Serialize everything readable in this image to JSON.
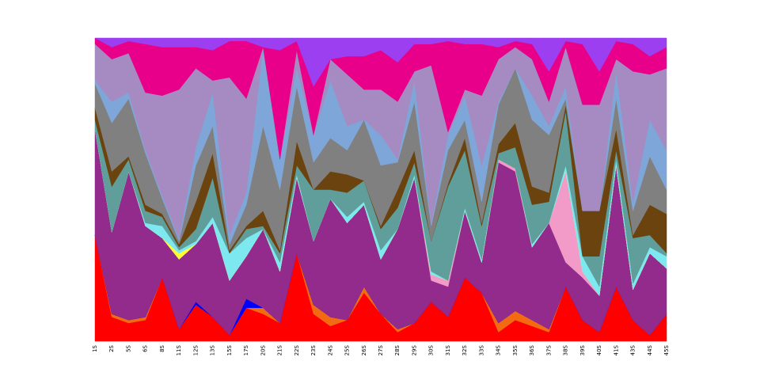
{
  "chart_data": {
    "type": "stackedarea",
    "categories": [
      "1S",
      "2S",
      "5S",
      "6S",
      "8S",
      "11S",
      "12S",
      "13S",
      "15S",
      "17S",
      "20S",
      "21S",
      "22S",
      "23S",
      "24S",
      "25S",
      "26S",
      "27S",
      "28S",
      "29S",
      "30S",
      "31S",
      "32S",
      "33S",
      "34S",
      "35S",
      "36S",
      "37S",
      "38S",
      "39S",
      "40S",
      "41S",
      "43S",
      "44S",
      "45S"
    ],
    "ylim": [
      0,
      100
    ],
    "series": [
      {
        "color": "#ff0000",
        "values": [
          35,
          8,
          6,
          7,
          21,
          4,
          12,
          8,
          2,
          11,
          9,
          6,
          29,
          9,
          5,
          7,
          16,
          9,
          3,
          6,
          13,
          8,
          21,
          16,
          3,
          7,
          5,
          3,
          18,
          7,
          3,
          18,
          7,
          2,
          9
        ]
      },
      {
        "color": "#f26b12",
        "values": [
          0,
          1,
          1,
          1,
          0,
          0,
          0,
          0,
          0,
          0,
          2,
          0,
          0,
          3,
          3,
          0,
          2,
          0,
          1,
          0,
          0,
          0,
          0,
          0,
          3,
          3,
          2,
          1,
          0,
          0,
          0,
          0,
          0,
          0,
          0
        ]
      },
      {
        "color": "#0000ff",
        "values": [
          0,
          0,
          0,
          0,
          0,
          0,
          1,
          0,
          0,
          3,
          0,
          0,
          0,
          0,
          0,
          0,
          0,
          0,
          0,
          0,
          0,
          0,
          0,
          0,
          0,
          0,
          0,
          0,
          0,
          0,
          0,
          0,
          0,
          0,
          0
        ]
      },
      {
        "color": "#922b8c",
        "values": [
          35,
          27,
          49,
          30,
          13,
          23,
          19,
          31,
          18,
          14,
          26,
          17,
          25,
          21,
          39,
          32,
          27,
          18,
          33,
          48,
          7,
          10,
          22,
          10,
          53,
          46,
          24,
          35,
          8,
          14,
          12,
          40,
          10,
          27,
          15
        ]
      },
      {
        "color": "#f29bc8",
        "values": [
          0,
          0,
          0,
          0,
          0,
          0,
          0,
          0,
          0,
          0,
          0,
          0,
          0,
          0,
          0,
          0,
          0,
          0,
          0,
          0,
          2,
          2,
          0,
          0,
          1,
          1,
          0,
          0,
          30,
          2,
          0,
          0,
          0,
          0,
          0
        ]
      },
      {
        "color": "#ffff33",
        "values": [
          0,
          0,
          0,
          0,
          0,
          2,
          0,
          0,
          0,
          0,
          0,
          0,
          0,
          0,
          0,
          0,
          0,
          0,
          0,
          0,
          0,
          0,
          0,
          0,
          0,
          0,
          0,
          0,
          0,
          0,
          0,
          0,
          0,
          0,
          0
        ]
      },
      {
        "color": "#7ee8f0",
        "values": [
          0,
          0,
          0,
          1,
          4,
          1,
          1,
          2,
          9,
          6,
          0,
          3,
          1,
          0,
          0,
          2,
          1,
          3,
          0,
          1,
          1,
          0,
          1,
          1,
          0,
          0,
          1,
          0,
          2,
          5,
          3,
          2,
          2,
          2,
          4
        ]
      },
      {
        "color": "#5f9e9a",
        "values": [
          3,
          15,
          4,
          4,
          3,
          1,
          4,
          13,
          0,
          3,
          1,
          3,
          3,
          17,
          3,
          8,
          7,
          7,
          7,
          4,
          10,
          31,
          19,
          11,
          2,
          7,
          13,
          7,
          18,
          0,
          10,
          3,
          15,
          4,
          1
        ]
      },
      {
        "color": "#6b430f",
        "values": [
          4,
          5,
          1,
          2,
          1,
          1,
          9,
          8,
          1,
          1,
          5,
          1,
          8,
          0,
          6,
          6,
          0,
          1,
          6,
          4,
          0,
          1,
          4,
          1,
          3,
          8,
          6,
          3,
          2,
          15,
          15,
          7,
          1,
          10,
          13
        ]
      },
      {
        "color": "#808080",
        "values": [
          8,
          16,
          19,
          17,
          5,
          1,
          12,
          9,
          2,
          7,
          28,
          20,
          18,
          9,
          11,
          8,
          20,
          20,
          9,
          16,
          5,
          11,
          6,
          7,
          13,
          18,
          22,
          19,
          2,
          0,
          0,
          10,
          8,
          16,
          8
        ]
      },
      {
        "color": "#7ea6d8",
        "values": [
          1,
          7,
          2,
          1,
          1,
          1,
          6,
          11,
          3,
          4,
          26,
          10,
          6,
          9,
          19,
          8,
          0,
          10,
          1,
          7,
          1,
          5,
          8,
          12,
          1,
          0,
          8,
          3,
          4,
          0,
          0,
          9,
          3,
          12,
          13
        ]
      },
      {
        "color": "#a58bc2",
        "values": [
          12,
          14,
          13,
          19,
          33,
          49,
          26,
          4,
          52,
          31,
          0,
          0,
          6,
          0,
          7,
          17,
          10,
          15,
          19,
          3,
          52,
          1,
          2,
          23,
          14,
          7,
          12,
          8,
          13,
          35,
          35,
          4,
          43,
          15,
          27
        ]
      },
      {
        "color": "#e8008a",
        "values": [
          2,
          4,
          4,
          16,
          16,
          14,
          7,
          10,
          12,
          19,
          0,
          36,
          3,
          16,
          0,
          6,
          11,
          13,
          13,
          9,
          7,
          30,
          15,
          17,
          4,
          2,
          5,
          10,
          2,
          20,
          11,
          6,
          9,
          6,
          7
        ]
      },
      {
        "color": "#9b3ff0",
        "values": [
          0,
          3,
          1,
          2,
          3,
          3,
          3,
          4,
          1,
          1,
          3,
          4,
          1,
          16,
          7,
          6,
          6,
          4,
          8,
          2,
          2,
          1,
          2,
          2,
          3,
          1,
          2,
          11,
          1,
          2,
          11,
          1,
          2,
          6,
          3
        ]
      }
    ]
  }
}
